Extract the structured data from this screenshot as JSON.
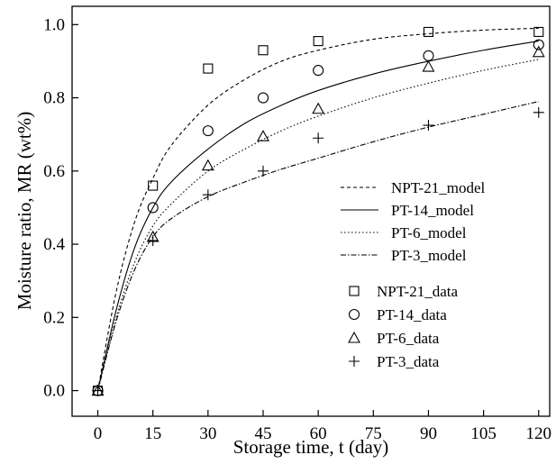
{
  "chart_data": {
    "type": "scatter",
    "xlabel": "Storage time, t (day)",
    "ylabel": "Moisture ratio, MR (wt%)",
    "xlim": [
      -7,
      123
    ],
    "ylim": [
      -0.07,
      1.05
    ],
    "xticks": [
      0,
      15,
      30,
      45,
      60,
      75,
      90,
      105,
      120
    ],
    "yticks": [
      0.0,
      0.2,
      0.4,
      0.6,
      0.8,
      1.0
    ],
    "ytick_labels": [
      "0.0",
      "0.2",
      "0.4",
      "0.6",
      "0.8",
      "1.0"
    ],
    "grid": false,
    "legend_position": "center-right",
    "models": [
      {
        "name": "NPT-21_model",
        "dash": "dashed",
        "x": [
          0,
          5,
          10,
          15,
          20,
          30,
          40,
          50,
          60,
          75,
          90,
          105,
          120
        ],
        "y": [
          0.0,
          0.27,
          0.46,
          0.58,
          0.67,
          0.78,
          0.85,
          0.9,
          0.93,
          0.96,
          0.975,
          0.985,
          0.99
        ]
      },
      {
        "name": "PT-14_model",
        "dash": "solid",
        "x": [
          0,
          5,
          10,
          15,
          20,
          30,
          40,
          50,
          60,
          75,
          90,
          105,
          120
        ],
        "y": [
          0.0,
          0.22,
          0.39,
          0.5,
          0.57,
          0.66,
          0.73,
          0.78,
          0.82,
          0.865,
          0.9,
          0.93,
          0.955
        ]
      },
      {
        "name": "PT-6_model",
        "dash": "dotted",
        "x": [
          0,
          5,
          10,
          15,
          20,
          30,
          40,
          50,
          60,
          75,
          90,
          105,
          120
        ],
        "y": [
          0.0,
          0.2,
          0.35,
          0.45,
          0.51,
          0.6,
          0.66,
          0.71,
          0.75,
          0.8,
          0.84,
          0.875,
          0.905
        ]
      },
      {
        "name": "PT-3_model",
        "dash": "dashdot",
        "x": [
          0,
          5,
          10,
          15,
          20,
          30,
          40,
          50,
          60,
          75,
          90,
          105,
          120
        ],
        "y": [
          0.0,
          0.19,
          0.33,
          0.42,
          0.47,
          0.53,
          0.57,
          0.605,
          0.635,
          0.68,
          0.72,
          0.755,
          0.79
        ]
      }
    ],
    "series": [
      {
        "name": "NPT-21_data",
        "marker": "square",
        "x": [
          0,
          15,
          30,
          45,
          60,
          90,
          120
        ],
        "y": [
          0.0,
          0.56,
          0.88,
          0.93,
          0.955,
          0.98,
          0.98
        ]
      },
      {
        "name": "PT-14_data",
        "marker": "circle",
        "x": [
          0,
          15,
          30,
          45,
          60,
          90,
          120
        ],
        "y": [
          0.0,
          0.5,
          0.71,
          0.8,
          0.875,
          0.915,
          0.945
        ]
      },
      {
        "name": "PT-6_data",
        "marker": "triangle",
        "x": [
          0,
          15,
          30,
          45,
          60,
          90,
          120
        ],
        "y": [
          0.0,
          0.42,
          0.615,
          0.695,
          0.77,
          0.885,
          0.925
        ]
      },
      {
        "name": "PT-3_data",
        "marker": "plus",
        "x": [
          0,
          15,
          30,
          45,
          60,
          90,
          120
        ],
        "y": [
          0.0,
          0.41,
          0.535,
          0.6,
          0.69,
          0.725,
          0.76
        ]
      }
    ]
  }
}
